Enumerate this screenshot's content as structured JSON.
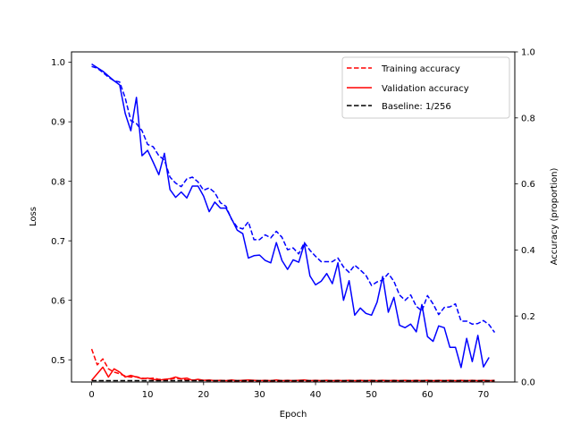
{
  "chart_data": {
    "type": "line",
    "title": "",
    "xlabel": "Epoch",
    "ylabel_left": "Loss",
    "ylabel_right": "Accuracy (proportion)",
    "xlim": [
      -3.6,
      75.6
    ],
    "ylim_left": [
      0.4627,
      1.0175
    ],
    "ylim_right": [
      0.0,
      1.0
    ],
    "x_ticks": [
      0,
      10,
      20,
      30,
      40,
      50,
      60,
      70
    ],
    "y_ticks_left": [
      0.5,
      0.6,
      0.7,
      0.8,
      0.9,
      1.0
    ],
    "y_ticks_right": [
      0.0,
      0.2,
      0.4,
      0.6,
      0.8,
      1.0
    ],
    "grid": false,
    "legend_position": "top-right",
    "series": [
      {
        "name": "Training accuracy",
        "axis": "right",
        "color": "#ff0000",
        "dash": true,
        "x": [
          0,
          1,
          2,
          3,
          4,
          5,
          6,
          7,
          8,
          9,
          10,
          11,
          12,
          13,
          14,
          15,
          16,
          17,
          18,
          19,
          20,
          21,
          22,
          23,
          24,
          25,
          26,
          27,
          28,
          29,
          30,
          31,
          32,
          33,
          34,
          35,
          36,
          37,
          38,
          39,
          40,
          41,
          42,
          43,
          44,
          45,
          46,
          47,
          48,
          49,
          50,
          51,
          52,
          53,
          54,
          55,
          56,
          57,
          58,
          59,
          60,
          61,
          62,
          63,
          64,
          65,
          66,
          67,
          68,
          69,
          70,
          71,
          72
        ],
        "y": [
          0.1,
          0.052,
          0.07,
          0.04,
          0.03,
          0.025,
          0.018,
          0.015,
          0.016,
          0.012,
          0.01,
          0.012,
          0.008,
          0.007,
          0.008,
          0.012,
          0.009,
          0.006,
          0.006,
          0.005,
          0.005,
          0.004,
          0.004,
          0.004,
          0.004,
          0.003,
          0.003,
          0.003,
          0.003,
          0.003,
          0.003,
          0.003,
          0.003,
          0.003,
          0.003,
          0.003,
          0.003,
          0.003,
          0.003,
          0.003,
          0.003,
          0.003,
          0.003,
          0.002,
          0.002,
          0.002,
          0.002,
          0.002,
          0.002,
          0.002,
          0.002,
          0.002,
          0.002,
          0.002,
          0.002,
          0.002,
          0.002,
          0.002,
          0.002,
          0.002,
          0.002,
          0.002,
          0.002,
          0.002,
          0.002,
          0.002,
          0.002,
          0.002,
          0.002,
          0.002,
          0.002,
          0.002,
          0.002
        ]
      },
      {
        "name": "Validation accuracy",
        "axis": "right",
        "color": "#ff0000",
        "dash": false,
        "x": [
          0,
          1,
          2,
          3,
          4,
          5,
          6,
          7,
          8,
          9,
          10,
          11,
          12,
          13,
          14,
          15,
          16,
          17,
          18,
          19,
          20,
          21,
          22,
          23,
          24,
          25,
          26,
          27,
          28,
          29,
          30,
          31,
          32,
          33,
          34,
          35,
          36,
          37,
          38,
          39,
          40,
          41,
          42,
          43,
          44,
          45,
          46,
          47,
          48,
          49,
          50,
          51,
          52,
          53,
          54,
          55,
          56,
          57,
          58,
          59,
          60,
          61,
          62,
          63,
          64,
          65,
          66,
          67,
          68,
          69,
          70,
          71,
          72
        ],
        "y": [
          0.005,
          0.025,
          0.045,
          0.015,
          0.04,
          0.03,
          0.015,
          0.02,
          0.015,
          0.01,
          0.012,
          0.008,
          0.005,
          0.008,
          0.01,
          0.015,
          0.01,
          0.012,
          0.005,
          0.008,
          0.005,
          0.006,
          0.004,
          0.005,
          0.004,
          0.006,
          0.004,
          0.005,
          0.006,
          0.005,
          0.004,
          0.005,
          0.004,
          0.006,
          0.004,
          0.005,
          0.004,
          0.005,
          0.006,
          0.004,
          0.005,
          0.004,
          0.005,
          0.004,
          0.005,
          0.004,
          0.005,
          0.004,
          0.005,
          0.004,
          0.005,
          0.004,
          0.005,
          0.004,
          0.005,
          0.004,
          0.005,
          0.004,
          0.005,
          0.004,
          0.005,
          0.004,
          0.005,
          0.004,
          0.005,
          0.004,
          0.005,
          0.004,
          0.005,
          0.004,
          0.005,
          0.004,
          0.005
        ]
      },
      {
        "name": "Baseline: 1/256",
        "axis": "right",
        "color": "#000000",
        "dash": true,
        "x": [
          0,
          72
        ],
        "y": [
          0.0039,
          0.0039
        ]
      },
      {
        "name": "",
        "axis": "left",
        "color": "#0000ff",
        "dash": true,
        "x": [
          0,
          1,
          2,
          3,
          4,
          5,
          6,
          7,
          8,
          9,
          10,
          11,
          12,
          13,
          14,
          15,
          16,
          17,
          18,
          19,
          20,
          21,
          22,
          23,
          24,
          25,
          26,
          27,
          28,
          29,
          30,
          31,
          32,
          33,
          34,
          35,
          36,
          37,
          38,
          39,
          40,
          41,
          42,
          43,
          44,
          45,
          46,
          47,
          48,
          49,
          50,
          51,
          52,
          53,
          54,
          55,
          56,
          57,
          58,
          59,
          60,
          61,
          62,
          63,
          64,
          65,
          66,
          67,
          68,
          69,
          70,
          71,
          72
        ],
        "y": [
          0.993,
          0.99,
          0.983,
          0.975,
          0.969,
          0.967,
          0.94,
          0.902,
          0.897,
          0.885,
          0.862,
          0.858,
          0.843,
          0.836,
          0.807,
          0.797,
          0.791,
          0.804,
          0.807,
          0.799,
          0.785,
          0.789,
          0.781,
          0.764,
          0.758,
          0.736,
          0.723,
          0.72,
          0.732,
          0.702,
          0.702,
          0.71,
          0.705,
          0.716,
          0.706,
          0.685,
          0.688,
          0.678,
          0.697,
          0.684,
          0.674,
          0.665,
          0.665,
          0.665,
          0.671,
          0.656,
          0.647,
          0.659,
          0.651,
          0.642,
          0.625,
          0.631,
          0.634,
          0.645,
          0.632,
          0.609,
          0.6,
          0.609,
          0.59,
          0.582,
          0.608,
          0.594,
          0.576,
          0.588,
          0.589,
          0.594,
          0.565,
          0.565,
          0.56,
          0.561,
          0.566,
          0.559,
          0.546
        ]
      },
      {
        "name": "",
        "axis": "left",
        "color": "#0000ff",
        "dash": false,
        "x": [
          0,
          1,
          2,
          3,
          4,
          5,
          6,
          7,
          8,
          9,
          10,
          11,
          12,
          13,
          14,
          15,
          16,
          17,
          18,
          19,
          20,
          21,
          22,
          23,
          24,
          25,
          26,
          27,
          28,
          29,
          30,
          31,
          32,
          33,
          34,
          35,
          36,
          37,
          38,
          39,
          40,
          41,
          42,
          43,
          44,
          45,
          46,
          47,
          48,
          49,
          50,
          51,
          52,
          53,
          54,
          55,
          56,
          57,
          58,
          59,
          60,
          61,
          62,
          63,
          64,
          65,
          66,
          67,
          68,
          69,
          70,
          71,
          72
        ],
        "y": [
          0.997,
          0.991,
          0.985,
          0.977,
          0.969,
          0.962,
          0.914,
          0.885,
          0.941,
          0.843,
          0.852,
          0.832,
          0.811,
          0.847,
          0.786,
          0.773,
          0.782,
          0.772,
          0.792,
          0.792,
          0.775,
          0.749,
          0.765,
          0.755,
          0.755,
          0.737,
          0.718,
          0.712,
          0.671,
          0.675,
          0.676,
          0.667,
          0.663,
          0.697,
          0.667,
          0.652,
          0.668,
          0.664,
          0.695,
          0.641,
          0.626,
          0.632,
          0.645,
          0.628,
          0.663,
          0.6,
          0.633,
          0.575,
          0.587,
          0.578,
          0.575,
          0.597,
          0.64,
          0.58,
          0.605,
          0.558,
          0.554,
          0.56,
          0.547,
          0.593,
          0.539,
          0.531,
          0.557,
          0.554,
          0.521,
          0.521,
          0.487,
          0.536,
          0.497,
          0.541,
          0.488,
          0.504,
          null
        ]
      }
    ]
  }
}
